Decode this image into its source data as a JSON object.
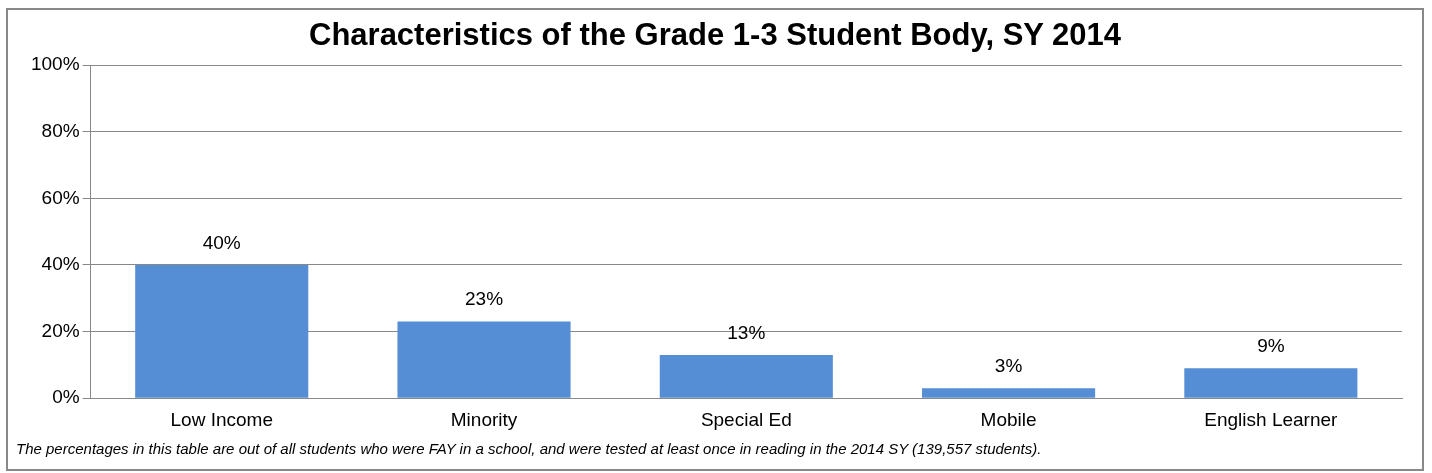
{
  "chart_data": {
    "type": "bar",
    "title": "Characteristics of the Grade 1-3 Student Body, SY 2014",
    "categories": [
      "Low Income",
      "Minority",
      "Special Ed",
      "Mobile",
      "English Learner"
    ],
    "values": [
      40,
      23,
      13,
      3,
      9
    ],
    "color": "#558ed5",
    "value_labels": [
      "40%",
      "23%",
      "13%",
      "3%",
      "9%"
    ],
    "ylim": [
      0,
      100
    ],
    "yticks": [
      {
        "value": 0,
        "label": "0%"
      },
      {
        "value": 20,
        "label": "20%"
      },
      {
        "value": 40,
        "label": "40%"
      },
      {
        "value": 60,
        "label": "60%"
      },
      {
        "value": 80,
        "label": "80%"
      },
      {
        "value": 100,
        "label": "100%"
      }
    ],
    "grid": "y",
    "legend": false,
    "annotations": [
      "The percentages in this table are out of all students who were FAY in a school, and were tested at least once in reading in the 2014 SY (139,557 students)."
    ]
  }
}
